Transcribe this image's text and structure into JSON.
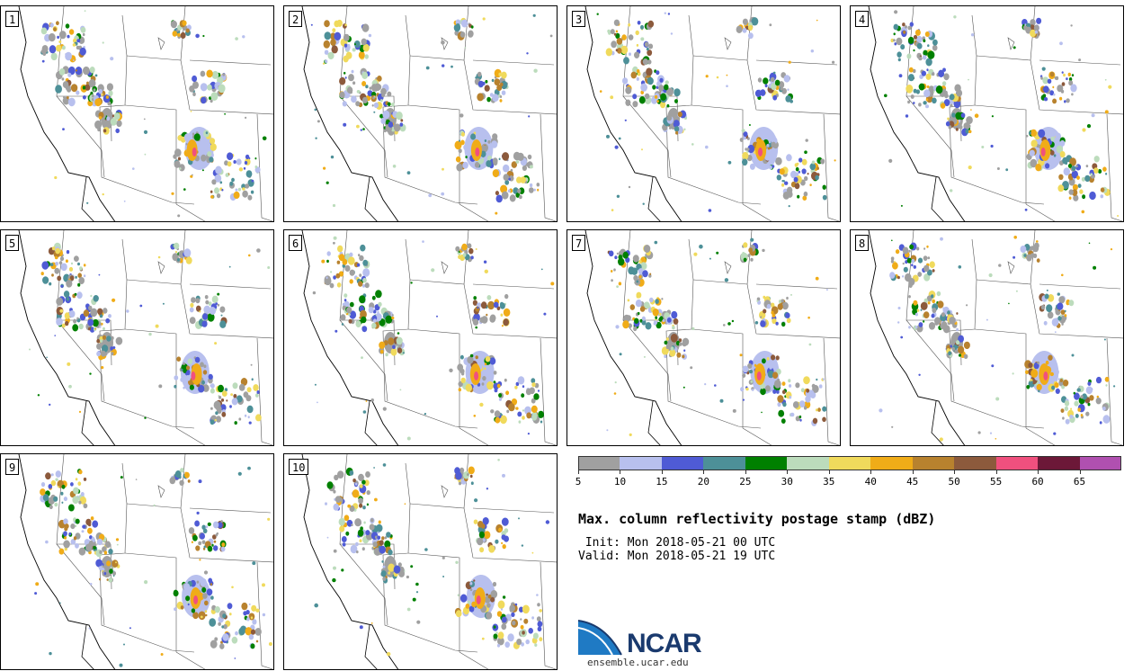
{
  "panels": [
    {
      "label": "1"
    },
    {
      "label": "2"
    },
    {
      "label": "3"
    },
    {
      "label": "4"
    },
    {
      "label": "5"
    },
    {
      "label": "6"
    },
    {
      "label": "7"
    },
    {
      "label": "8"
    },
    {
      "label": "9"
    },
    {
      "label": "10"
    }
  ],
  "colorbar": {
    "colors": [
      "#a0a0a0",
      "#b8c0ee",
      "#4f5bd5",
      "#4d9098",
      "#008000",
      "#bcdcbc",
      "#f0da5c",
      "#f0ac18",
      "#b8822e",
      "#8c5a3c",
      "#f0507e",
      "#6c1838",
      "#b050b0"
    ],
    "labels": [
      "5",
      "10",
      "15",
      "20",
      "25",
      "30",
      "35",
      "40",
      "45",
      "50",
      "55",
      "60",
      "65"
    ]
  },
  "title": "Max. column reflectivity postage stamp (dBZ)",
  "init_text": " Init: Mon 2018-05-21 00 UTC",
  "valid_text": "Valid: Mon 2018-05-21 19 UTC",
  "logo": {
    "word": "NCAR",
    "url": "ensemble.ucar.edu"
  }
}
